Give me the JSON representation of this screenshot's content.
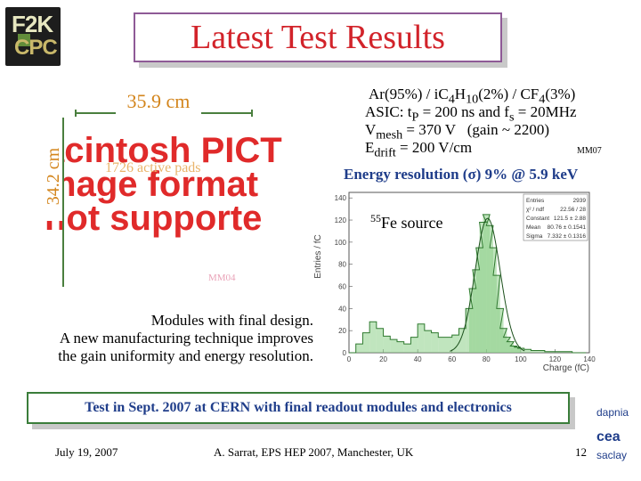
{
  "header": {
    "logo_text_1": "F2K",
    "logo_text_2": "CPC",
    "title": "Latest Test Results"
  },
  "left_panel": {
    "pict_placeholder": "acintosh PICT\nmage format\nnot supporte",
    "width_label": "35.9 cm",
    "height_label": "34.2 cm",
    "pads_label": "1726 active pads",
    "module_label": "MM04",
    "description": [
      "Modules with final design.",
      "A new manufacturing technique improves",
      "the gain uniformity and energy resolution."
    ]
  },
  "right_panel": {
    "gas_mixture": "Ar(95%) / iC4H10(2%) / CF4(3%)",
    "asic": "ASIC: tP = 200 ns and fs = 20MHz",
    "vmesh": "Vmesh = 370 V   (gain ~ 2200)",
    "edrift": "Edrift = 200 V/cm",
    "module_label": "MM07",
    "energy_resolution": "Energy resolution (σ) 9% @ 5.9 keV",
    "source_label": "Fe source",
    "source_isotope": "55"
  },
  "histogram": {
    "ylabel": "Entries / fC",
    "xlabel": "Charge (fC)",
    "stats": [
      {
        "name": "Entries",
        "value": "2939"
      },
      {
        "name": "χ² / ndf",
        "value": "22.56  /  28"
      },
      {
        "name": "Constant",
        "value": "121.5  ±  2.88"
      },
      {
        "name": "Mean",
        "value": "80.76  ±  0.1541"
      },
      {
        "name": "Sigma",
        "value": "7.332  ±  0.1316"
      }
    ]
  },
  "chart_data": {
    "type": "bar",
    "xlabel": "Charge (fC)",
    "ylabel": "Entries / fC",
    "xlim": [
      0,
      140
    ],
    "ylim": [
      0,
      145
    ],
    "x": [
      2,
      6,
      10,
      14,
      18,
      22,
      26,
      30,
      34,
      38,
      42,
      46,
      50,
      54,
      58,
      62,
      66,
      70,
      72,
      74,
      76,
      78,
      80,
      82,
      84,
      86,
      88,
      90,
      92,
      94,
      96,
      98,
      100,
      104,
      108,
      112,
      116,
      120,
      124,
      128,
      132,
      136
    ],
    "values": [
      0,
      8,
      18,
      28,
      22,
      15,
      12,
      10,
      8,
      14,
      26,
      20,
      18,
      14,
      14,
      16,
      22,
      40,
      58,
      75,
      95,
      118,
      125,
      115,
      95,
      70,
      40,
      22,
      14,
      10,
      6,
      5,
      4,
      3,
      2,
      2,
      1,
      1,
      1,
      1,
      0,
      0
    ]
  },
  "banner": {
    "text": "Test in Sept. 2007 at CERN with final readout modules and electronics"
  },
  "footer": {
    "date": "July 19, 2007",
    "author": "A. Sarrat, EPS HEP 2007, Manchester, UK",
    "page": "12",
    "logo_1": "dapnia",
    "logo_2": "cea",
    "logo_3": "saclay"
  }
}
